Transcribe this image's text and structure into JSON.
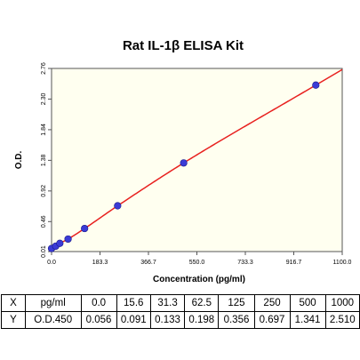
{
  "chart_data": {
    "type": "scatter",
    "title": "Rat IL-1β ELISA Kit",
    "xlabel": "Concentration (pg/ml)",
    "ylabel": "O.D.",
    "xlim": [
      0,
      1100.0
    ],
    "ylim": [
      0.01,
      2.76
    ],
    "xticks": [
      "0.0",
      "183.3",
      "366.7",
      "550.0",
      "733.3",
      "916.7",
      "1100.0"
    ],
    "xtick_values": [
      0,
      183.3,
      366.7,
      550.0,
      733.3,
      916.7,
      1100.0
    ],
    "yticks": [
      "0.01",
      "0.46",
      "0.92",
      "1.38",
      "1.84",
      "2.30",
      "2.76"
    ],
    "ytick_values": [
      0.01,
      0.46,
      0.92,
      1.38,
      1.84,
      2.3,
      2.76
    ],
    "series": [
      {
        "x": [
          0.0,
          15.6,
          31.3,
          62.5,
          125,
          250,
          500,
          1000
        ],
        "y": [
          0.056,
          0.091,
          0.133,
          0.198,
          0.356,
          0.697,
          1.341,
          2.51
        ],
        "marker_color": "#3b3bd6",
        "line_color": "#e8211f"
      }
    ],
    "grid": false,
    "background": "#fffff0"
  },
  "table": {
    "rows": [
      [
        "X",
        "pg/ml",
        "0.0",
        "15.6",
        "31.3",
        "62.5",
        "125",
        "250",
        "500",
        "1000"
      ],
      [
        "Y",
        "O.D.450",
        "0.056",
        "0.091",
        "0.133",
        "0.198",
        "0.356",
        "0.697",
        "1.341",
        "2.510"
      ]
    ]
  }
}
